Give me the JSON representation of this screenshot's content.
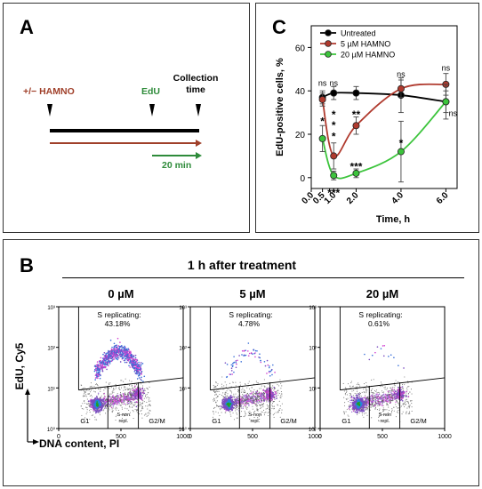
{
  "panel_a": {
    "letter": "A",
    "hamno_label": "+/− HAMNO",
    "edu_label": "EdU",
    "collection_label": "Collection time",
    "duration_label": "20 min",
    "colors": {
      "hamno": "#a0402a",
      "edu": "#2e8b3a",
      "line": "#000000"
    }
  },
  "panel_c": {
    "letter": "C"
  },
  "panel_b": {
    "letter": "B",
    "title": "1 h after treatment",
    "y_axis_label": "EdU, Cy5",
    "x_axis_label": "DNA content, PI"
  },
  "chart_data": [
    {
      "type": "line",
      "xlabel": "Time, h",
      "ylabel": "EdU-positive cells, %",
      "xlim": [
        0,
        6.5
      ],
      "ylim": [
        -5,
        70
      ],
      "x_ticks": [
        "0.0",
        "0.5",
        "1.0",
        "2.0",
        "4.0",
        "6.0"
      ],
      "y_ticks": [
        "0",
        "20",
        "40",
        "60"
      ],
      "legend": "top-left",
      "series": [
        {
          "name": "Untreated",
          "color": "#000000",
          "x": [
            0.5,
            1.0,
            2.0,
            4.0,
            6.0
          ],
          "y": [
            37,
            39,
            39,
            38,
            35
          ],
          "err": [
            3,
            3,
            3,
            8,
            5
          ]
        },
        {
          "name": "5 µM HAMNO",
          "color": "#b03a2e",
          "x": [
            0.5,
            1.0,
            2.0,
            4.0,
            6.0
          ],
          "y": [
            36,
            10,
            24,
            41,
            43
          ],
          "err": [
            3,
            6,
            4,
            4,
            5
          ]
        },
        {
          "name": "20 µM HAMNO",
          "color": "#3cc43c",
          "x": [
            0.5,
            1.0,
            2.0,
            4.0,
            6.0
          ],
          "y": [
            18,
            1,
            2,
            12,
            35
          ],
          "err": [
            6,
            2,
            2,
            14,
            8
          ]
        }
      ],
      "annotations": [
        {
          "text": "ns",
          "x": 0.5,
          "y": 44
        },
        {
          "text": "ns",
          "x": 1.0,
          "y": 44
        },
        {
          "text": "ns",
          "x": 4.0,
          "y": 48
        },
        {
          "text": "ns",
          "x": 6.0,
          "y": 51
        },
        {
          "text": "ns",
          "x": 6.0,
          "y": 30
        },
        {
          "text": "*",
          "x": 0.5,
          "y": 26
        },
        {
          "text": "*",
          "x": 1.0,
          "y": 19
        },
        {
          "text": "*",
          "x": 1.0,
          "y": 24
        },
        {
          "text": "*",
          "x": 1.0,
          "y": 29
        },
        {
          "text": "**",
          "x": 2.0,
          "y": 29
        },
        {
          "text": "***",
          "x": 1.0,
          "y": -7
        },
        {
          "text": "***",
          "x": 2.0,
          "y": 5
        },
        {
          "text": "*",
          "x": 4.0,
          "y": 16
        }
      ]
    },
    {
      "type": "scatter",
      "title": "0 µM",
      "xlim": [
        0,
        1000
      ],
      "x_ticks": [
        "0",
        "500",
        "1000"
      ],
      "y_ticks": [
        "10⁰",
        "10¹",
        "10²",
        "10³"
      ],
      "gate_label": "S replicating:",
      "gate_value": "43.18%",
      "regions": [
        "G1",
        "S-non repl.",
        "G2/M"
      ]
    },
    {
      "type": "scatter",
      "title": "5 µM",
      "xlim": [
        0,
        1000
      ],
      "x_ticks": [
        "0",
        "500",
        "1000"
      ],
      "y_ticks": [
        "10⁰",
        "10¹",
        "10²",
        "10³"
      ],
      "gate_label": "S replicating:",
      "gate_value": "4.78%",
      "regions": [
        "G1",
        "S-non repl.",
        "G2/M"
      ]
    },
    {
      "type": "scatter",
      "title": "20 µM",
      "xlim": [
        0,
        1000
      ],
      "x_ticks": [
        "0",
        "500",
        "1000"
      ],
      "y_ticks": [
        "10⁰",
        "10¹",
        "10²",
        "10³"
      ],
      "gate_label": "S replicating:",
      "gate_value": "0.61%",
      "regions": [
        "G1",
        "S-non repl.",
        "G2/M"
      ]
    }
  ]
}
